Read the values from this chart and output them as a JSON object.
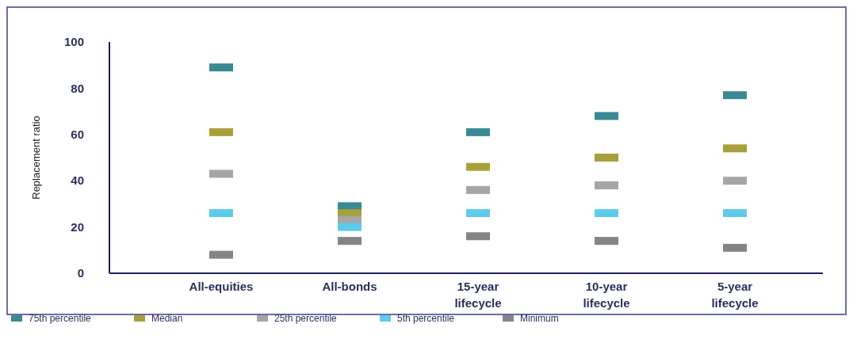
{
  "chart_data": {
    "type": "scatter",
    "ylabel": "Replacement ratio",
    "categories": [
      "All-equities",
      "All-bonds",
      "15-year lifecycle",
      "10-year lifecycle",
      "5-year lifecycle"
    ],
    "ylim": [
      0,
      100
    ],
    "yticks": [
      0,
      20,
      40,
      60,
      80,
      100
    ],
    "legend": "bottom left",
    "series": [
      {
        "name": "75th percentile",
        "color": "#3a8a94",
        "values": [
          89,
          29,
          61,
          68,
          77
        ]
      },
      {
        "name": "Median",
        "color": "#a8a03a",
        "values": [
          61,
          26,
          46,
          50,
          54
        ]
      },
      {
        "name": "25th percentile",
        "color": "#a6a6a8",
        "values": [
          43,
          23,
          36,
          38,
          40
        ]
      },
      {
        "name": "5th percentile",
        "color": "#5ecbec",
        "values": [
          26,
          20,
          26,
          26,
          26
        ]
      },
      {
        "name": "Minimum",
        "color": "#858589",
        "values": [
          8,
          14,
          16,
          14,
          11
        ]
      }
    ]
  }
}
